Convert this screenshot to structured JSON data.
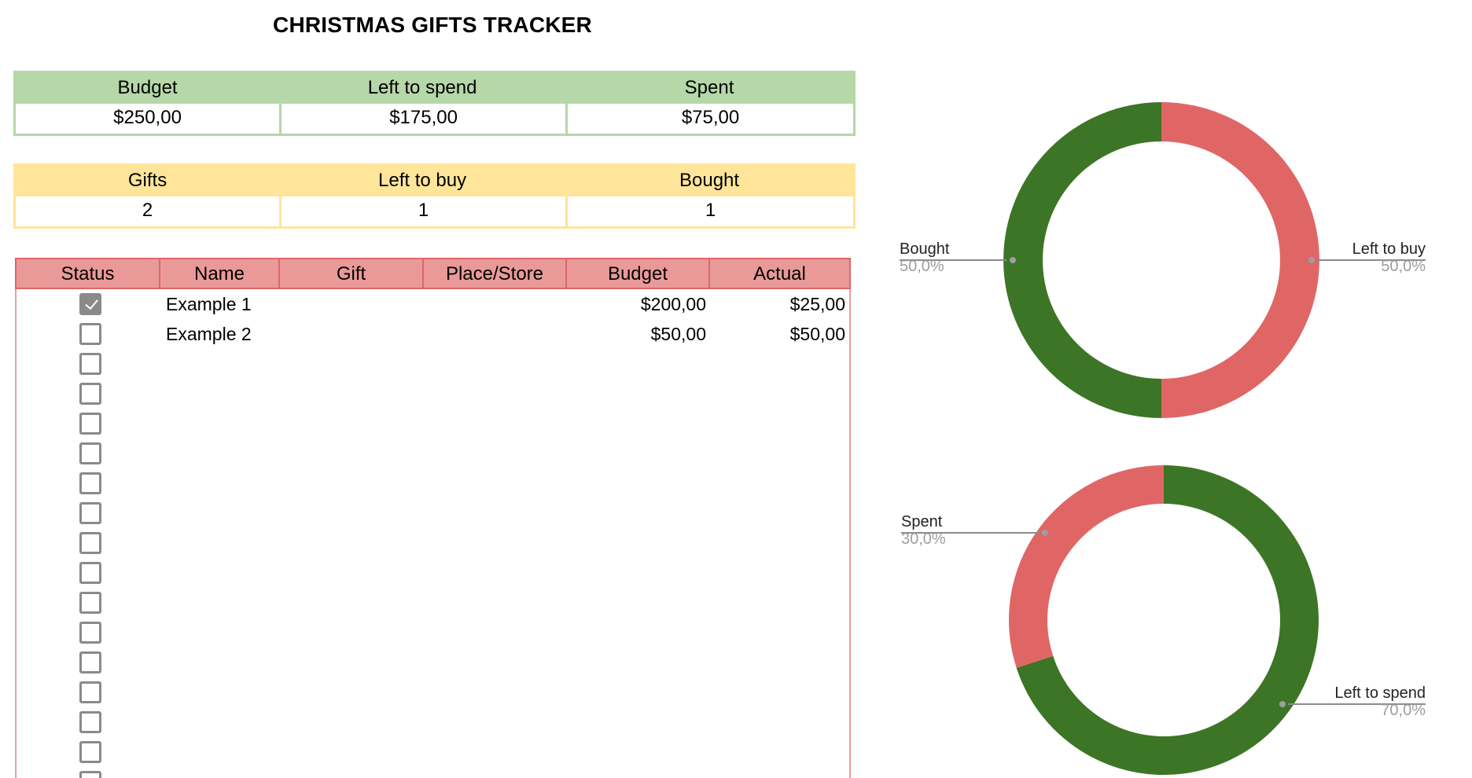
{
  "title": "CHRISTMAS GIFTS TRACKER",
  "budget_summary": {
    "headers": [
      "Budget",
      "Left to spend",
      "Spent"
    ],
    "values": [
      "$250,00",
      "$175,00",
      "$75,00"
    ],
    "color": "#b6d7a8"
  },
  "gifts_summary": {
    "headers": [
      "Gifts",
      "Left to buy",
      "Bought"
    ],
    "values": [
      "2",
      "1",
      "1"
    ],
    "color": "#ffe599"
  },
  "gift_table": {
    "columns": [
      "Status",
      "Name",
      "Gift",
      "Place/Store",
      "Budget",
      "Actual"
    ],
    "header_color": "#ea9999",
    "rows": [
      {
        "checked": true,
        "name": "Example 1",
        "gift": "",
        "place": "",
        "budget": "$200,00",
        "actual": "$25,00"
      },
      {
        "checked": false,
        "name": "Example 2",
        "gift": "",
        "place": "",
        "budget": "$50,00",
        "actual": "$50,00"
      },
      {
        "checked": false,
        "name": "",
        "gift": "",
        "place": "",
        "budget": "",
        "actual": ""
      },
      {
        "checked": false,
        "name": "",
        "gift": "",
        "place": "",
        "budget": "",
        "actual": ""
      },
      {
        "checked": false,
        "name": "",
        "gift": "",
        "place": "",
        "budget": "",
        "actual": ""
      },
      {
        "checked": false,
        "name": "",
        "gift": "",
        "place": "",
        "budget": "",
        "actual": ""
      },
      {
        "checked": false,
        "name": "",
        "gift": "",
        "place": "",
        "budget": "",
        "actual": ""
      },
      {
        "checked": false,
        "name": "",
        "gift": "",
        "place": "",
        "budget": "",
        "actual": ""
      },
      {
        "checked": false,
        "name": "",
        "gift": "",
        "place": "",
        "budget": "",
        "actual": ""
      },
      {
        "checked": false,
        "name": "",
        "gift": "",
        "place": "",
        "budget": "",
        "actual": ""
      },
      {
        "checked": false,
        "name": "",
        "gift": "",
        "place": "",
        "budget": "",
        "actual": ""
      },
      {
        "checked": false,
        "name": "",
        "gift": "",
        "place": "",
        "budget": "",
        "actual": ""
      },
      {
        "checked": false,
        "name": "",
        "gift": "",
        "place": "",
        "budget": "",
        "actual": ""
      },
      {
        "checked": false,
        "name": "",
        "gift": "",
        "place": "",
        "budget": "",
        "actual": ""
      },
      {
        "checked": false,
        "name": "",
        "gift": "",
        "place": "",
        "budget": "",
        "actual": ""
      },
      {
        "checked": false,
        "name": "",
        "gift": "",
        "place": "",
        "budget": "",
        "actual": ""
      },
      {
        "checked": false,
        "name": "",
        "gift": "",
        "place": "",
        "budget": "",
        "actual": ""
      }
    ]
  },
  "colors": {
    "green": "#3d7526",
    "red": "#e06666",
    "leader": "#8c8c8c",
    "pct_text": "#9e9e9e"
  },
  "chart_data": [
    {
      "type": "pie",
      "donut": true,
      "title": "",
      "categories": [
        "Left to buy",
        "Bought"
      ],
      "values": [
        1,
        1
      ],
      "percent_labels": [
        "50,0%",
        "50,0%"
      ],
      "colors": [
        "#e06666",
        "#3d7526"
      ],
      "legend": "labeled slices"
    },
    {
      "type": "pie",
      "donut": true,
      "title": "",
      "categories": [
        "Left to spend",
        "Spent"
      ],
      "values": [
        175,
        75
      ],
      "percent_labels": [
        "70,0%",
        "30,0%"
      ],
      "colors": [
        "#3d7526",
        "#e06666"
      ],
      "legend": "labeled slices"
    }
  ]
}
